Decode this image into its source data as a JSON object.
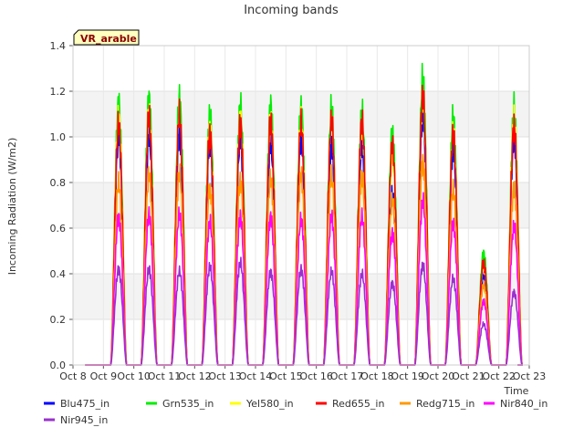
{
  "chart_data": {
    "type": "line",
    "title": "Incoming bands",
    "xlabel": "Time",
    "ylabel": "Incoming Radiation (W/m2)",
    "badge": "VR_arable",
    "x_range_days": [
      8,
      23
    ],
    "ylim": [
      0,
      1.4
    ],
    "y_ticks": [
      "0.0",
      "0.2",
      "0.4",
      "0.6",
      "0.8",
      "1.0",
      "1.2",
      "1.4"
    ],
    "x_ticks": [
      "Oct 8",
      "Oct 9",
      "Oct 10",
      "Oct 11",
      "Oct 12",
      "Oct 13",
      "Oct 14",
      "Oct 15",
      "Oct 16",
      "Oct 17",
      "Oct 18",
      "Oct 19",
      "Oct 20",
      "Oct 21",
      "Oct 22",
      "Oct 23"
    ],
    "grid": true,
    "legend_position": "bottom",
    "day_peak_dates": [
      "Oct 9",
      "Oct 10",
      "Oct 11",
      "Oct 12",
      "Oct 13",
      "Oct 14",
      "Oct 15",
      "Oct 16",
      "Oct 17",
      "Oct 18",
      "Oct 19",
      "Oct 20",
      "Oct 21",
      "Oct 22"
    ],
    "series": [
      {
        "name": "Blu475_in",
        "color": "#0000ff",
        "peaks": [
          1.0,
          1.01,
          1.01,
          0.98,
          0.99,
          0.97,
          0.99,
          0.97,
          0.96,
          0.75,
          1.1,
          0.95,
          0.39,
          1.0
        ]
      },
      {
        "name": "Grn535_in",
        "color": "#00ee00",
        "peaks": [
          1.15,
          1.17,
          1.17,
          1.1,
          1.14,
          1.14,
          1.13,
          1.13,
          1.11,
          1.02,
          1.26,
          1.09,
          0.49,
          1.13
        ]
      },
      {
        "name": "Yel580_in",
        "color": "#ffff00",
        "peaks": [
          1.09,
          1.1,
          1.1,
          1.04,
          1.08,
          1.08,
          1.07,
          1.07,
          1.05,
          0.92,
          1.17,
          1.02,
          0.44,
          1.08
        ]
      },
      {
        "name": "Red655_in",
        "color": "#ff0000",
        "peaks": [
          1.06,
          1.09,
          1.1,
          1.02,
          1.06,
          1.07,
          1.06,
          1.07,
          1.07,
          0.96,
          1.18,
          1.01,
          0.45,
          1.05
        ]
      },
      {
        "name": "Redg715_in",
        "color": "#ff9900",
        "peaks": [
          0.8,
          0.83,
          0.84,
          0.78,
          0.81,
          0.82,
          0.83,
          0.83,
          0.83,
          0.72,
          0.89,
          0.77,
          0.35,
          0.78
        ]
      },
      {
        "name": "Nir840_in",
        "color": "#ff00ff",
        "peaks": [
          0.65,
          0.66,
          0.66,
          0.63,
          0.65,
          0.65,
          0.64,
          0.65,
          0.65,
          0.58,
          0.72,
          0.62,
          0.28,
          0.61
        ]
      },
      {
        "name": "Nir945_in",
        "color": "#9932cc",
        "peaks": [
          0.42,
          0.42,
          0.41,
          0.43,
          0.45,
          0.41,
          0.42,
          0.41,
          0.4,
          0.36,
          0.44,
          0.38,
          0.18,
          0.32
        ]
      }
    ]
  }
}
